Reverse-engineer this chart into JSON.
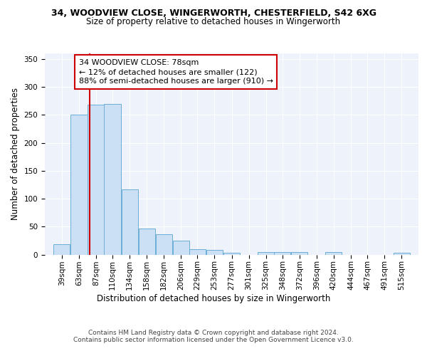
{
  "title_line1": "34, WOODVIEW CLOSE, WINGERWORTH, CHESTERFIELD, S42 6XG",
  "title_line2": "Size of property relative to detached houses in Wingerworth",
  "xlabel": "Distribution of detached houses by size in Wingerworth",
  "ylabel": "Number of detached properties",
  "bins": [
    39,
    63,
    87,
    110,
    134,
    158,
    182,
    206,
    229,
    253,
    277,
    301,
    325,
    348,
    372,
    396,
    420,
    444,
    467,
    491,
    515
  ],
  "values": [
    18,
    250,
    268,
    270,
    116,
    46,
    36,
    25,
    9,
    8,
    3,
    0,
    4,
    5,
    5,
    0,
    4,
    0,
    0,
    0,
    3
  ],
  "bar_color": "#cce0f5",
  "bar_edge_color": "#6baed6",
  "vline_x": 78,
  "vline_color": "#cc0000",
  "annotation_text": "34 WOODVIEW CLOSE: 78sqm\n← 12% of detached houses are smaller (122)\n88% of semi-detached houses are larger (910) →",
  "annotation_box_color": "#ffffff",
  "annotation_box_edge_color": "#cc0000",
  "ylim": [
    0,
    360
  ],
  "yticks": [
    0,
    50,
    100,
    150,
    200,
    250,
    300,
    350
  ],
  "background_color": "#eef2fb",
  "grid_color": "#ffffff",
  "footer_text": "Contains HM Land Registry data © Crown copyright and database right 2024.\nContains public sector information licensed under the Open Government Licence v3.0.",
  "title_fontsize": 9,
  "subtitle_fontsize": 8.5,
  "axis_label_fontsize": 8.5,
  "tick_fontsize": 7.5,
  "annotation_fontsize": 8,
  "footer_fontsize": 6.5
}
